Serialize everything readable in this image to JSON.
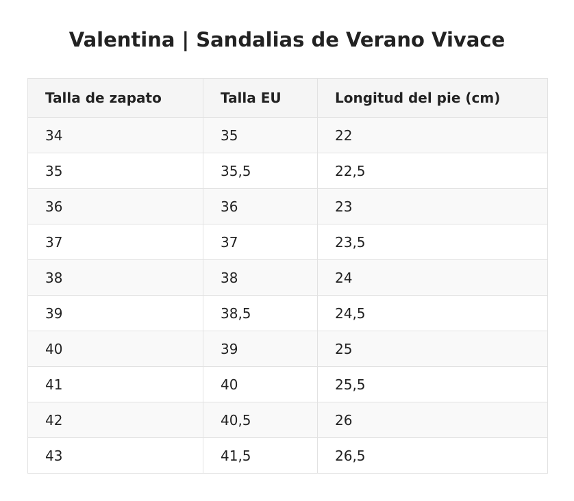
{
  "header": {
    "title": "Valentina | Sandalias de Verano Vivace"
  },
  "table": {
    "columns": [
      "Talla de zapato",
      "Talla EU",
      "Longitud del pie (cm)"
    ],
    "rows": [
      [
        "34",
        "35",
        "22"
      ],
      [
        "35",
        "35,5",
        "22,5"
      ],
      [
        "36",
        "36",
        "23"
      ],
      [
        "37",
        "37",
        "23,5"
      ],
      [
        "38",
        "38",
        "24"
      ],
      [
        "39",
        "38,5",
        "24,5"
      ],
      [
        "40",
        "39",
        "25"
      ],
      [
        "41",
        "40",
        "25,5"
      ],
      [
        "42",
        "40,5",
        "26"
      ],
      [
        "43",
        "41,5",
        "26,5"
      ]
    ]
  }
}
